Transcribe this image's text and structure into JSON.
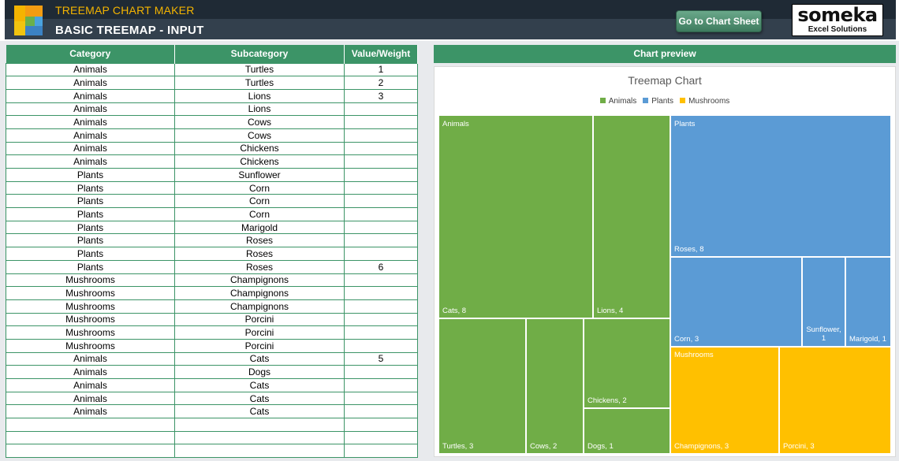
{
  "header": {
    "app_title": "TREEMAP CHART MAKER",
    "page_title": "BASIC TREEMAP - INPUT",
    "goto_button": "Go to Chart Sheet",
    "brand_name": "someka",
    "brand_sub": "Excel Solutions"
  },
  "table": {
    "columns": [
      "Category",
      "Subcategory",
      "Value/Weight"
    ],
    "rows": [
      [
        "Animals",
        "Turtles",
        "1"
      ],
      [
        "Animals",
        "Turtles",
        "2"
      ],
      [
        "Animals",
        "Lions",
        "3"
      ],
      [
        "Animals",
        "Lions",
        ""
      ],
      [
        "Animals",
        "Cows",
        ""
      ],
      [
        "Animals",
        "Cows",
        ""
      ],
      [
        "Animals",
        "Chickens",
        ""
      ],
      [
        "Animals",
        "Chickens",
        ""
      ],
      [
        "Plants",
        "Sunflower",
        ""
      ],
      [
        "Plants",
        "Corn",
        ""
      ],
      [
        "Plants",
        "Corn",
        ""
      ],
      [
        "Plants",
        "Corn",
        ""
      ],
      [
        "Plants",
        "Marigold",
        ""
      ],
      [
        "Plants",
        "Roses",
        ""
      ],
      [
        "Plants",
        "Roses",
        ""
      ],
      [
        "Plants",
        "Roses",
        "6"
      ],
      [
        "Mushrooms",
        "Champignons",
        ""
      ],
      [
        "Mushrooms",
        "Champignons",
        ""
      ],
      [
        "Mushrooms",
        "Champignons",
        ""
      ],
      [
        "Mushrooms",
        "Porcini",
        ""
      ],
      [
        "Mushrooms",
        "Porcini",
        ""
      ],
      [
        "Mushrooms",
        "Porcini",
        ""
      ],
      [
        "Animals",
        "Cats",
        "5"
      ],
      [
        "Animals",
        "Dogs",
        ""
      ],
      [
        "Animals",
        "Cats",
        ""
      ],
      [
        "Animals",
        "Cats",
        ""
      ],
      [
        "Animals",
        "Cats",
        ""
      ],
      [
        "",
        "",
        ""
      ],
      [
        "",
        "",
        ""
      ],
      [
        "",
        "",
        ""
      ]
    ]
  },
  "chart_section_title": "Chart preview",
  "chart_data": {
    "type": "treemap",
    "title": "Treemap Chart",
    "legend_position": "top",
    "series": [
      {
        "name": "Animals",
        "color": "#70ad47"
      },
      {
        "name": "Plants",
        "color": "#5b9bd5"
      },
      {
        "name": "Mushrooms",
        "color": "#ffc000"
      }
    ],
    "nodes": [
      {
        "category": "Animals",
        "label": "Cats, 8",
        "value": 8
      },
      {
        "category": "Animals",
        "label": "Lions, 4",
        "value": 4
      },
      {
        "category": "Animals",
        "label": "Turtles, 3",
        "value": 3
      },
      {
        "category": "Animals",
        "label": "Cows, 2",
        "value": 2
      },
      {
        "category": "Animals",
        "label": "Chickens, 2",
        "value": 2
      },
      {
        "category": "Animals",
        "label": "Dogs, 1",
        "value": 1
      },
      {
        "category": "Plants",
        "label": "Roses, 8",
        "value": 8
      },
      {
        "category": "Plants",
        "label": "Corn, 3",
        "value": 3
      },
      {
        "category": "Plants",
        "label": "Sunflower, 1",
        "value": 1
      },
      {
        "category": "Plants",
        "label": "Marigold, 1",
        "value": 1
      },
      {
        "category": "Mushrooms",
        "label": "Champignons, 3",
        "value": 3
      },
      {
        "category": "Mushrooms",
        "label": "Porcini, 3",
        "value": 3
      }
    ]
  }
}
